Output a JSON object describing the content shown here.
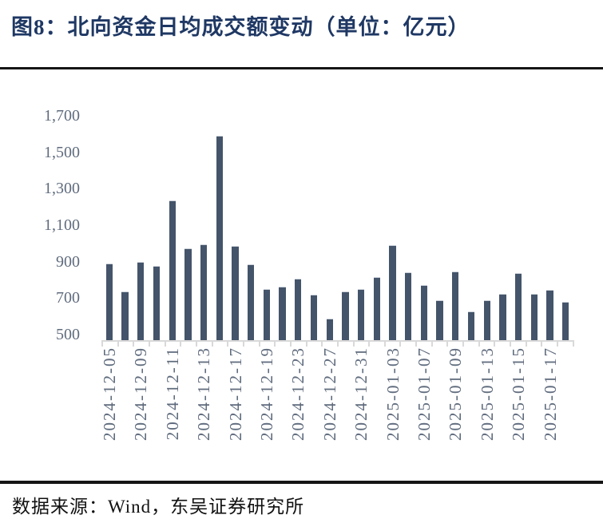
{
  "chart_data": {
    "type": "bar",
    "title": "图8：北向资金日均成交额变动（单位：亿元）",
    "unit": "亿元",
    "ylim": [
      500,
      1700
    ],
    "ytick_step": 200,
    "yticks": [
      "1,700",
      "1,500",
      "1,300",
      "1,100",
      "900",
      "700",
      "500"
    ],
    "categories": [
      "2024-12-05",
      "",
      "2024-12-09",
      "",
      "2024-12-11",
      "",
      "2024-12-13",
      "",
      "2024-12-17",
      "",
      "2024-12-19",
      "",
      "2024-12-23",
      "",
      "2024-12-27",
      "",
      "2024-12-31",
      "",
      "2025-01-03",
      "",
      "2025-01-07",
      "",
      "2025-01-09",
      "",
      "2025-01-13",
      "",
      "2025-01-15",
      "",
      "2025-01-17",
      ""
    ],
    "values": [
      905,
      755,
      915,
      895,
      1245,
      985,
      1010,
      1590,
      1000,
      900,
      770,
      780,
      825,
      740,
      610,
      755,
      770,
      835,
      1005,
      860,
      790,
      710,
      865,
      650,
      710,
      745,
      855,
      745,
      765,
      700
    ],
    "grid": false,
    "legend": "none",
    "bar_color": "#44546A",
    "axis_color": "#D9D9D9",
    "tick_label_color": "#5F6B7D"
  },
  "header": {
    "title_color": "#1F3864"
  },
  "footer": {
    "source_text": "数据来源：Wind，东吴证券研究所"
  }
}
